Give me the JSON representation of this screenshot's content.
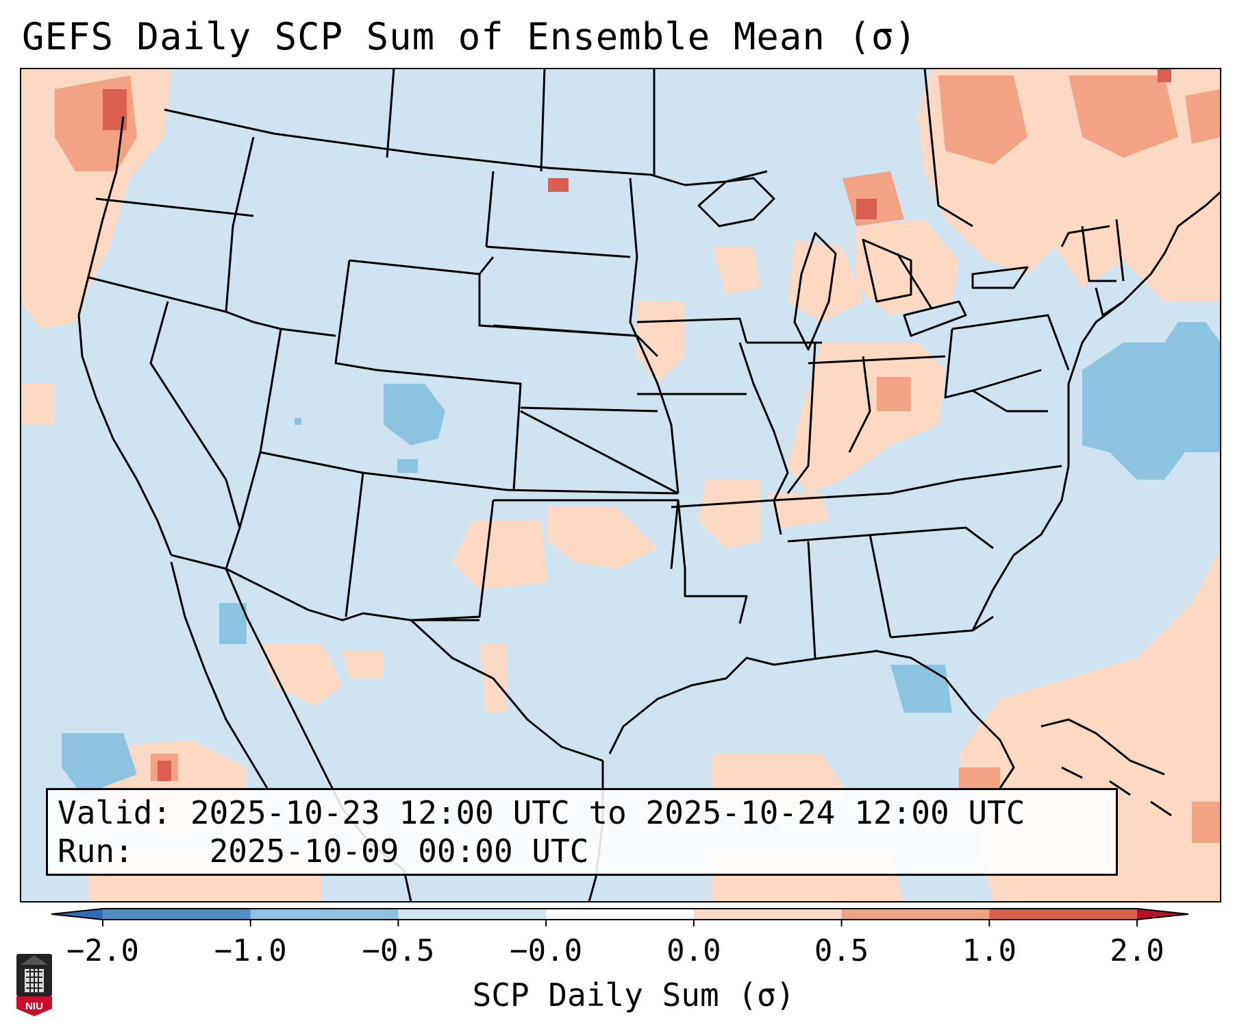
{
  "title": "GEFS Daily SCP Sum of Ensemble Mean (σ)",
  "info": {
    "valid_label": "Valid:",
    "valid_value": "2025-10-23 12:00 UTC to 2025-10-24 12:00 UTC",
    "run_label": "Run:",
    "run_value": "2025-10-09 00:00 UTC"
  },
  "colorbar": {
    "title": "SCP Daily Sum (σ)",
    "tick_labels": [
      "−2.0",
      "−1.0",
      "−0.5",
      "−0.0",
      "0.0",
      "0.5",
      "1.0",
      "2.0"
    ],
    "bin_colors": [
      "#4a8fc7",
      "#8cc4e0",
      "#cfe3f0",
      "#ffffff",
      "#fdd9c4",
      "#f3a283",
      "#d9604e"
    ],
    "under_color": "#2e6db3",
    "over_color": "#b3132a"
  },
  "map": {
    "background_color": "#cfe3f0",
    "colors": {
      "light_positive": "#fdd9c4",
      "moderate_positive": "#f3a283",
      "strong_positive": "#d9604e",
      "moderate_negative": "#8cc4e0",
      "boundary": "#000000"
    }
  },
  "logo": {
    "text": "NIU",
    "color": "#c8102e"
  }
}
